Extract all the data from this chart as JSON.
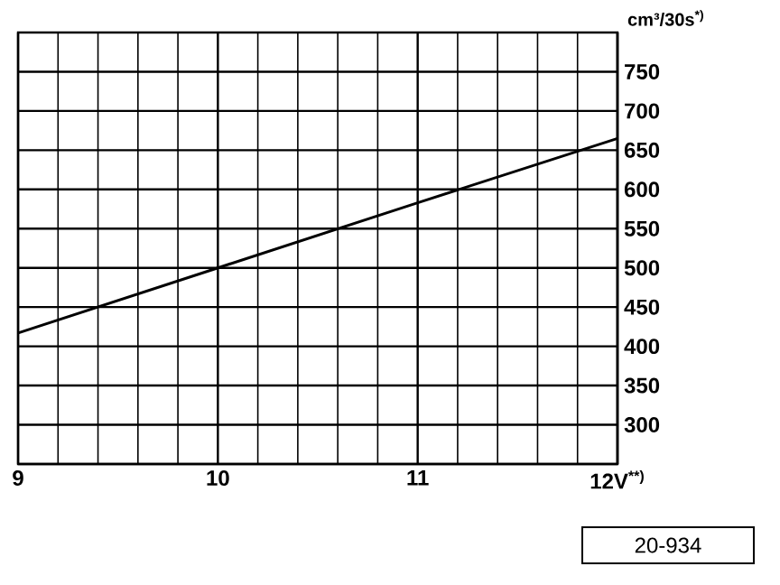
{
  "chart_data": {
    "type": "line",
    "xlabel": null,
    "ylabel": "cm³/30s$^{*)}$",
    "x": [
      9,
      10,
      11,
      12
    ],
    "values": [
      417,
      500,
      583,
      665
    ],
    "color": "#000000",
    "xlim": [
      9,
      12
    ],
    "ylim": [
      250,
      800
    ],
    "xticks": [
      9,
      10,
      11,
      {
        "value": 12,
        "label": "12V$^{**)}$"
      }
    ],
    "yticks": [
      300,
      350,
      400,
      450,
      500,
      550,
      600,
      650,
      700,
      750
    ],
    "grid": true,
    "marker": "none",
    "line_style": "solid",
    "annotations": [
      "20-934"
    ]
  }
}
